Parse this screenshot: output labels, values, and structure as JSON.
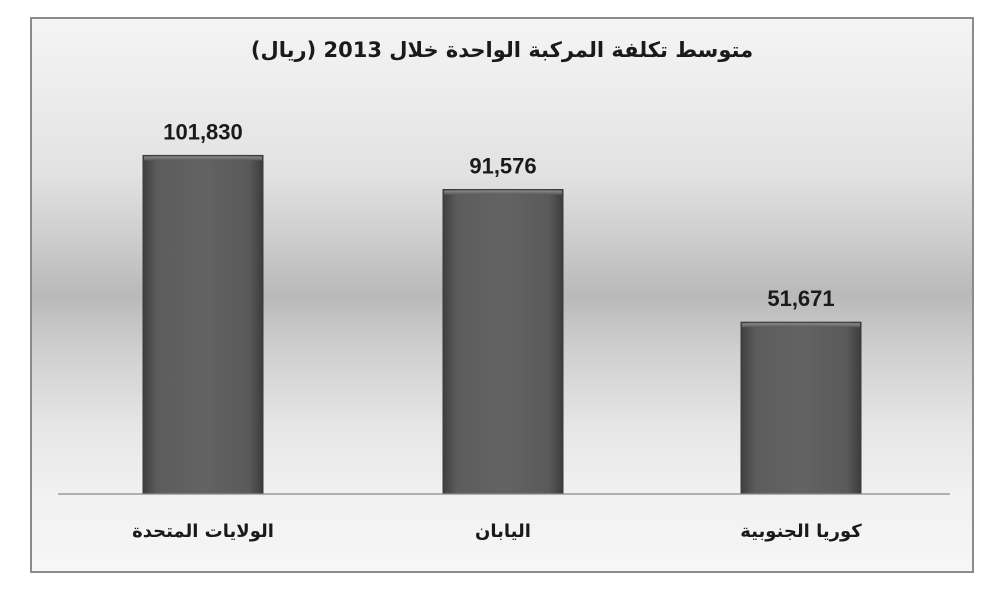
{
  "chart_data": {
    "type": "bar",
    "title": "متوسط تكلفة المركبة الواحدة خلال 2013 (ريال)",
    "categories": [
      "الولايات المتحدة",
      "اليابان",
      "كوريا الجنوبية"
    ],
    "values": [
      101830,
      91576,
      51671
    ],
    "value_labels": [
      "101,830",
      "91,576",
      "51,671"
    ],
    "ylim": [
      0,
      120000
    ],
    "grid": false,
    "legend": "none",
    "colors": {
      "bar": "#5a5a5a",
      "bar_edge": "#3a3a3a",
      "baseline": "#8a8a8a"
    }
  }
}
